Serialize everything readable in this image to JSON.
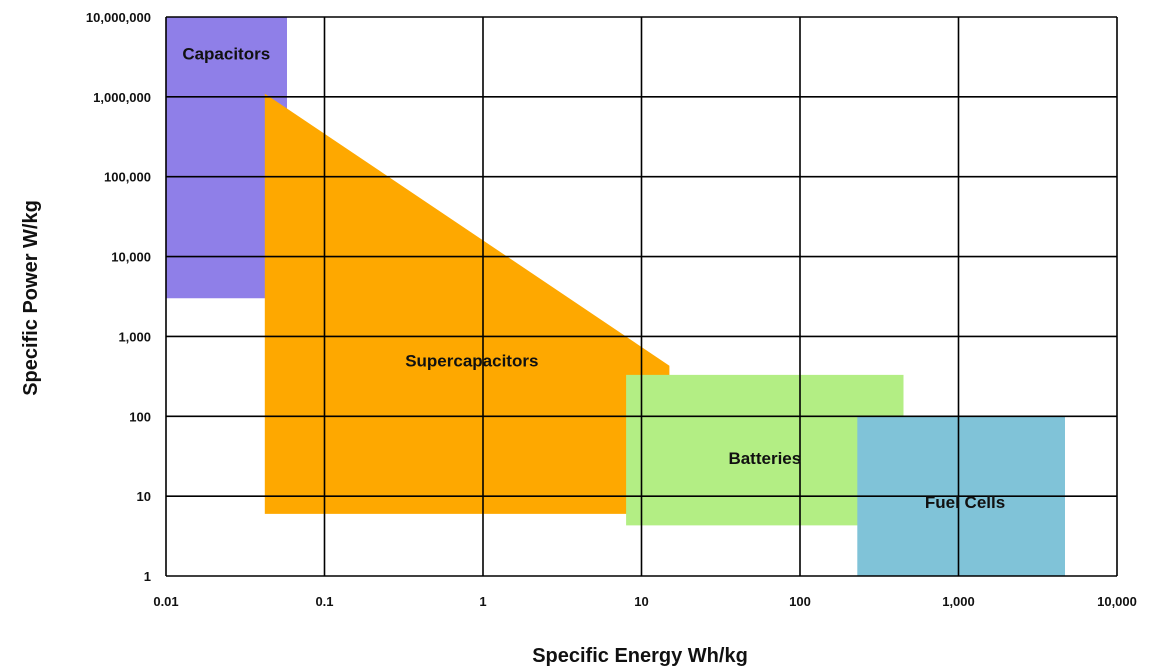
{
  "chart_data": {
    "type": "area",
    "title": "",
    "xlabel": "Specific Energy Wh/kg",
    "ylabel": "Specific Power W/kg",
    "xscale": "log",
    "yscale": "log",
    "xlim": [
      0.01,
      10000
    ],
    "ylim": [
      1,
      10000000
    ],
    "grid": true,
    "x_ticks": [
      0.01,
      0.1,
      1,
      10,
      100,
      1000,
      10000
    ],
    "x_tick_labels": [
      "0.01",
      "0.1",
      "1",
      "10",
      "100",
      "1,000",
      "10,000"
    ],
    "y_ticks": [
      1,
      10,
      100,
      1000,
      10000,
      100000,
      1000000,
      10000000
    ],
    "y_tick_labels": [
      "1",
      "10",
      "100",
      "1,000",
      "10,000",
      "100,000",
      "1,000,000",
      "10,000,000"
    ],
    "regions": [
      {
        "name": "Capacitors",
        "color": "#8f7fe8",
        "points": [
          [
            0.01,
            10000000
          ],
          [
            0.058,
            10000000
          ],
          [
            0.058,
            3000
          ],
          [
            0.01,
            3000
          ]
        ],
        "label_at": [
          0.024,
          3500000
        ]
      },
      {
        "name": "Supercapacitors",
        "color": "#fea800",
        "points": [
          [
            0.042,
            1100000
          ],
          [
            15,
            430
          ],
          [
            15,
            6
          ],
          [
            0.042,
            6
          ]
        ],
        "label_at": [
          0.85,
          500
        ]
      },
      {
        "name": "Batteries",
        "color": "#b3ee84",
        "points": [
          [
            8,
            330
          ],
          [
            450,
            330
          ],
          [
            450,
            4.3
          ],
          [
            8,
            4.3
          ]
        ],
        "label_at": [
          60,
          30
        ]
      },
      {
        "name": "Fuel Cells",
        "color": "#80c3d8",
        "points": [
          [
            230,
            100
          ],
          [
            4700,
            100
          ],
          [
            4700,
            1
          ],
          [
            230,
            1
          ]
        ],
        "label_at": [
          1100,
          8.5
        ]
      }
    ]
  }
}
